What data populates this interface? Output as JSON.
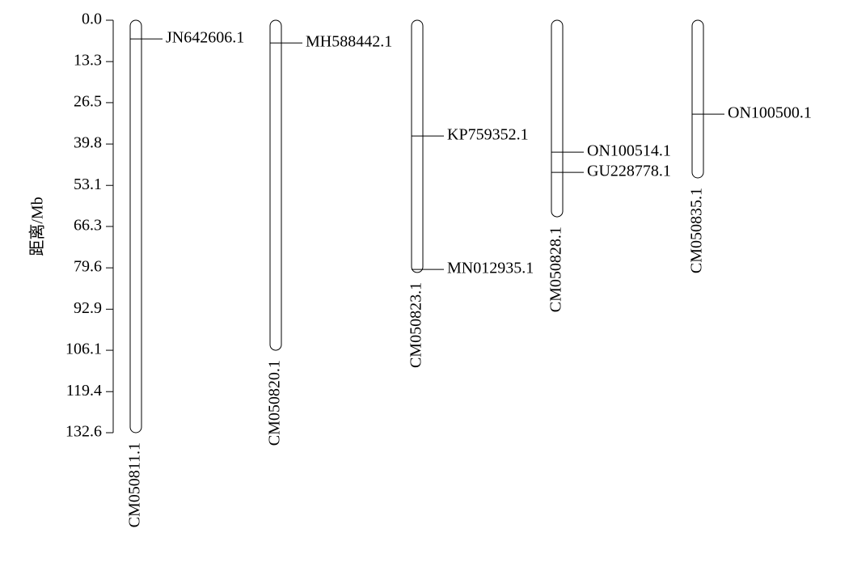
{
  "chart_data": {
    "type": "chromosome",
    "y_label": "距离/Mb",
    "ylim": [
      0,
      132.6
    ],
    "yticks": [
      {
        "value": 0,
        "label": "0.0"
      },
      13.3,
      26.5,
      39.8,
      53.1,
      66.3,
      79.6,
      92.9,
      106.1,
      119.4,
      132.6
    ],
    "chromosomes": [
      {
        "name": "CM050811.1",
        "length": 132.6,
        "markers": [
          {
            "name": "JN642606.1",
            "position": 6.0
          }
        ]
      },
      {
        "name": "CM050820.1",
        "length": 106.1,
        "markers": [
          {
            "name": "MH588442.1",
            "position": 7.3
          }
        ]
      },
      {
        "name": "CM050823.1",
        "length": 81.1,
        "markers": [
          {
            "name": "KP759352.1",
            "position": 37.2
          },
          {
            "name": "MN012935.1",
            "position": 80.1
          }
        ]
      },
      {
        "name": "CM050828.1",
        "length": 63.2,
        "markers": [
          {
            "name": "ON100514.1",
            "position": 42.4
          },
          {
            "name": "GU228778.1",
            "position": 48.9
          }
        ]
      },
      {
        "name": "CM050835.1",
        "length": 50.7,
        "markers": [
          {
            "name": "ON100500.1",
            "position": 30.2
          }
        ]
      }
    ]
  }
}
